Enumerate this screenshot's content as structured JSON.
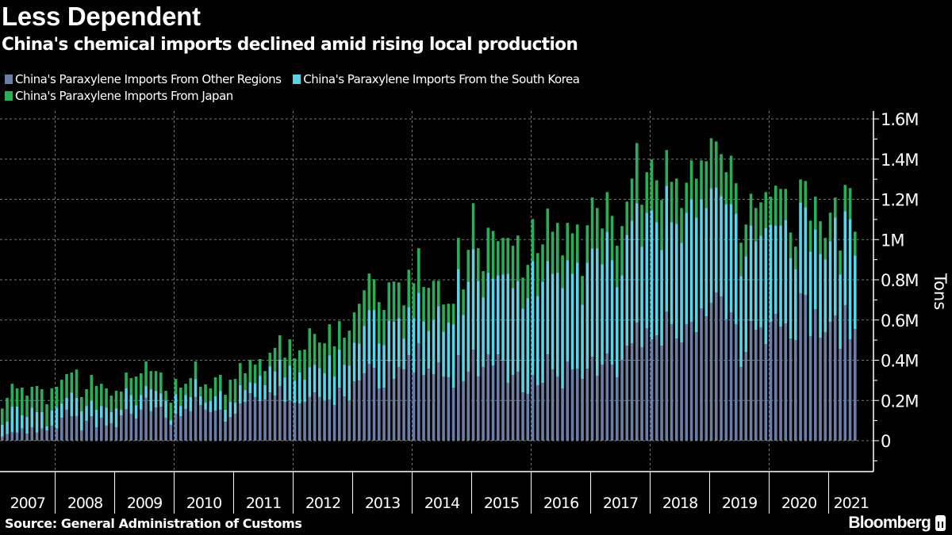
{
  "header": {
    "title": "Less Dependent",
    "subtitle": "China's chemical imports declined amid rising local production"
  },
  "footer": {
    "source": "Source: General Administration of Customs",
    "logo": "Bloomberg"
  },
  "chart_data": {
    "type": "bar",
    "stacked": true,
    "title": "Less Dependent",
    "subtitle": "China's chemical imports declined amid rising local production",
    "xlabel": "",
    "ylabel": "Tons",
    "start_month": "2007-02",
    "frequency": "monthly",
    "value_unit_multiplier": 1000,
    "ylim": [
      -150000,
      1650000
    ],
    "y_ticks": [
      0,
      200000,
      400000,
      600000,
      800000,
      1000000,
      1200000,
      1400000,
      1600000
    ],
    "y_tick_labels": [
      "0",
      "0.2M",
      "0.4M",
      "0.6M",
      "0.8M",
      "1M",
      "1.2M",
      "1.4M",
      "1.6M"
    ],
    "x_tick_labels": [
      "2007",
      "2008",
      "2009",
      "2010",
      "2011",
      "2012",
      "2013",
      "2014",
      "2015",
      "2016",
      "2017",
      "2018",
      "2019",
      "2020",
      "2021"
    ],
    "grid": true,
    "legend_position": "top-left",
    "colors": {
      "other": "#6b7fa6",
      "korea": "#5ad3e6",
      "japan": "#2aad58",
      "grid": "#777777",
      "axis": "#ffffff"
    },
    "series": [
      {
        "key": "other",
        "name": "China's Paraxylene Imports From Other Regions",
        "values": [
          20,
          33,
          43,
          40,
          60,
          35,
          67,
          40,
          60,
          51,
          75,
          60,
          114,
          154,
          122,
          122,
          51,
          98,
          122,
          67,
          114,
          75,
          87,
          67,
          126,
          157,
          134,
          110,
          154,
          213,
          146,
          165,
          169,
          114,
          79,
          134,
          122,
          157,
          146,
          217,
          177,
          154,
          142,
          150,
          154,
          94,
          118,
          134,
          185,
          193,
          236,
          217,
          197,
          205,
          240,
          224,
          272,
          193,
          200,
          189,
          185,
          193,
          217,
          240,
          217,
          200,
          205,
          177,
          264,
          220,
          200,
          295,
          299,
          335,
          382,
          362,
          260,
          264,
          394,
          307,
          366,
          354,
          425,
          339,
          484,
          327,
          358,
          331,
          390,
          319,
          315,
          264,
          425,
          295,
          343,
          453,
          319,
          366,
          429,
          374,
          429,
          398,
          287,
          327,
          343,
          240,
          232,
          327,
          276,
          287,
          429,
          354,
          319,
          260,
          394,
          354,
          358,
          307,
          358,
          417,
          323,
          378,
          433,
          378,
          315,
          402,
          472,
          484,
          587,
          465,
          559,
          504,
          524,
          472,
          642,
          579,
          508,
          488,
          579,
          591,
          539,
          657,
          618,
          685,
          736,
          717,
          602,
          638,
          579,
          366,
          441,
          594,
          551,
          563,
          480,
          591,
          630,
          567,
          583,
          508,
          500,
          732,
          724,
          520,
          654,
          512,
          539,
          591,
          622,
          457,
          673,
          504,
          555
        ]
      },
      {
        "key": "korea",
        "name": "China's Paraxylene Imports From the South Korea",
        "values": [
          60,
          63,
          127,
          130,
          66,
          83,
          98,
          102,
          82,
          20,
          75,
          105,
          71,
          59,
          118,
          91,
          95,
          75,
          78,
          87,
          59,
          90,
          55,
          94,
          28,
          103,
          94,
          67,
          74,
          59,
          110,
          83,
          67,
          86,
          23,
          98,
          51,
          71,
          71,
          90,
          44,
          35,
          55,
          71,
          94,
          60,
          75,
          55,
          91,
          59,
          55,
          70,
          126,
          71,
          130,
          122,
          130,
          122,
          174,
          110,
          154,
          111,
          149,
          138,
          145,
          135,
          220,
          142,
          189,
          158,
          174,
          193,
          185,
          236,
          268,
          288,
          224,
          212,
          204,
          284,
          244,
          154,
          240,
          271,
          252,
          267,
          189,
          271,
          279,
          224,
          272,
          315,
          429,
          331,
          448,
          500,
          476,
          347,
          406,
          433,
          394,
          429,
          544,
          433,
          452,
          417,
          477,
          567,
          444,
          504,
          465,
          477,
          516,
          500,
          504,
          477,
          528,
          370,
          528,
          540,
          634,
          500,
          606,
          520,
          449,
          421,
          552,
          610,
          594,
          500,
          575,
          642,
          563,
          477,
          626,
          508,
          571,
          496,
          555,
          610,
          571,
          544,
          539,
          571,
          524,
          500,
          575,
          539,
          551,
          453,
          476,
          477,
          441,
          457,
          579,
          484,
          441,
          504,
          515,
          401,
          354,
          453,
          437,
          421,
          397,
          417,
          363,
          401,
          488,
          370,
          469,
          598,
          366
        ]
      },
      {
        "key": "japan",
        "name": "China's Paraxylene Imports From Japan",
        "values": [
          80,
          117,
          113,
          90,
          138,
          106,
          103,
          130,
          114,
          110,
          110,
          103,
          118,
          118,
          99,
          141,
          71,
          83,
          127,
          118,
          110,
          95,
          82,
          87,
          90,
          79,
          83,
          142,
          107,
          122,
          90,
          98,
          103,
          48,
          87,
          75,
          91,
          55,
          94,
          87,
          47,
          91,
          63,
          94,
          79,
          74,
          110,
          118,
          110,
          83,
          111,
          91,
          83,
          70,
          67,
          115,
          122,
          98,
          130,
          110,
          110,
          149,
          193,
          153,
          126,
          149,
          154,
          150,
          141,
          134,
          173,
          150,
          197,
          177,
          181,
          153,
          205,
          174,
          189,
          200,
          177,
          165,
          185,
          173,
          221,
          170,
          213,
          193,
          126,
          134,
          94,
          102,
          154,
          126,
          158,
          228,
          162,
          130,
          224,
          236,
          169,
          181,
          177,
          209,
          225,
          154,
          165,
          208,
          213,
          185,
          260,
          208,
          248,
          161,
          185,
          200,
          189,
          142,
          185,
          252,
          200,
          177,
          197,
          220,
          205,
          244,
          165,
          209,
          299,
          208,
          201,
          252,
          208,
          248,
          177,
          200,
          224,
          173,
          149,
          193,
          193,
          193,
          233,
          248,
          228,
          208,
          158,
          240,
          150,
          165,
          158,
          157,
          165,
          165,
          177,
          138,
          197,
          181,
          154,
          126,
          111,
          114,
          130,
          153,
          162,
          162,
          106,
          142,
          99,
          118,
          130,
          154,
          118
        ]
      }
    ]
  }
}
